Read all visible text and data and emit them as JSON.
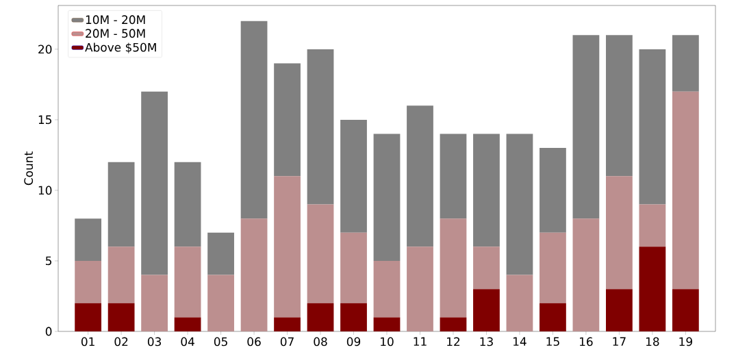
{
  "chart_data": {
    "type": "bar",
    "stacked": true,
    "ylabel": "Count",
    "categories": [
      "01",
      "02",
      "03",
      "04",
      "05",
      "06",
      "07",
      "08",
      "09",
      "10",
      "11",
      "12",
      "13",
      "14",
      "15",
      "16",
      "17",
      "18",
      "19"
    ],
    "series": [
      {
        "name": "Above $50M",
        "color": "#800000",
        "values": [
          2,
          2,
          0,
          1,
          0,
          0,
          1,
          2,
          2,
          1,
          0,
          1,
          3,
          0,
          2,
          0,
          3,
          6,
          3
        ]
      },
      {
        "name": "20M - 50M",
        "color": "#bc8f8f",
        "values": [
          3,
          4,
          4,
          5,
          4,
          8,
          10,
          7,
          5,
          4,
          6,
          7,
          3,
          4,
          5,
          8,
          8,
          3,
          14
        ]
      },
      {
        "name": "10M - 20M",
        "color": "#808080",
        "values": [
          3,
          6,
          13,
          6,
          3,
          14,
          8,
          11,
          8,
          9,
          10,
          6,
          8,
          10,
          6,
          13,
          10,
          11,
          4
        ]
      }
    ],
    "ylim": [
      0,
      23.1
    ],
    "yticks": [
      0,
      5,
      10,
      15,
      20
    ],
    "legend": "top left",
    "grid": false
  }
}
